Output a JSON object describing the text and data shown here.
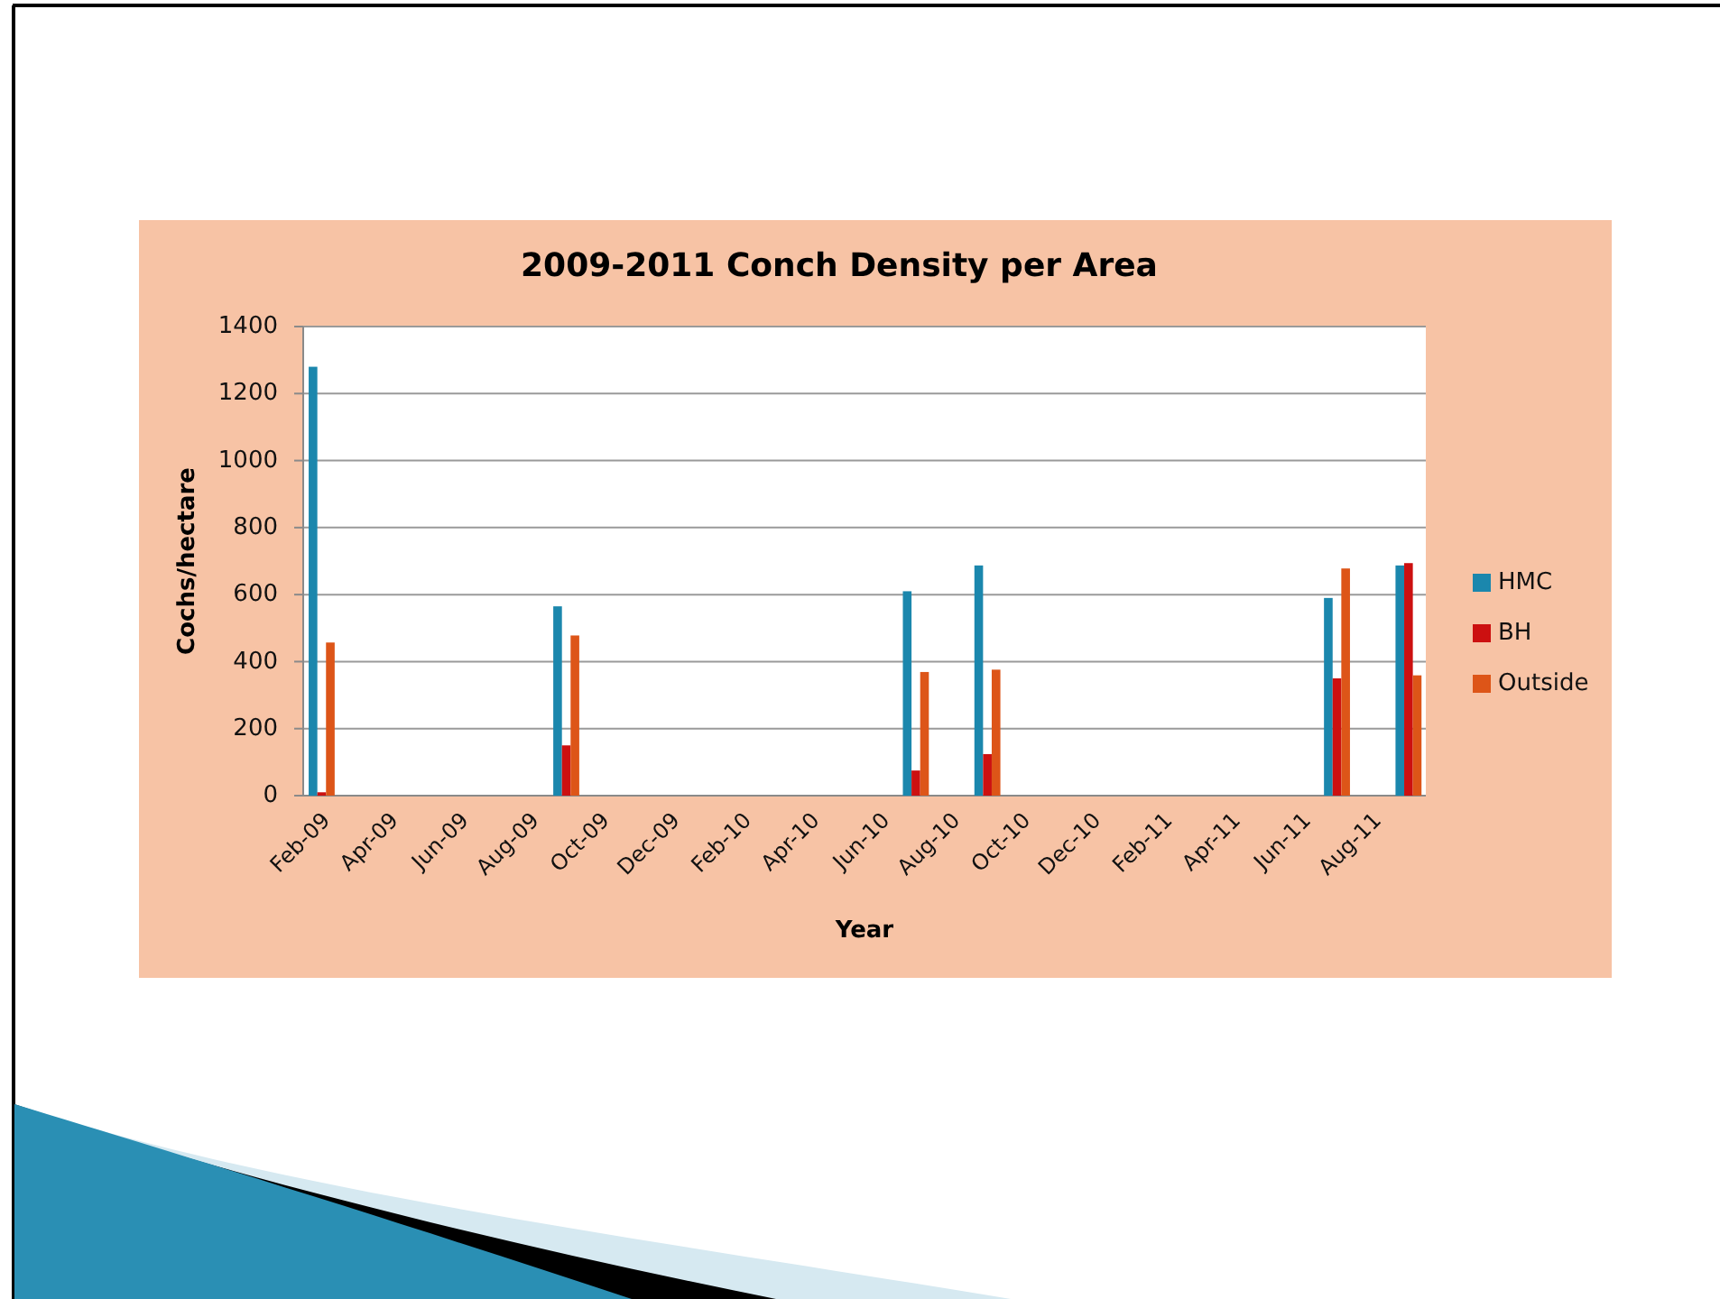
{
  "chart_data": {
    "type": "bar",
    "title": "2009-2011 Conch Density per Area",
    "xlabel": "Year",
    "ylabel": "Cochs/hectare",
    "x": [
      "2009-02",
      "2009-09",
      "2010-07",
      "2010-09",
      "2011-07",
      "2011-09"
    ],
    "series": [
      {
        "name": "HMC",
        "color": "#1b87ad",
        "values": [
          1280,
          565,
          610,
          687,
          590,
          687
        ]
      },
      {
        "name": "BH",
        "color": "#cc1010",
        "values": [
          10,
          150,
          75,
          124,
          350,
          694
        ]
      },
      {
        "name": "Outside",
        "color": "#dd5518",
        "values": [
          457,
          478,
          369,
          376,
          678,
          359
        ]
      }
    ],
    "xlim": [
      "2009-01-16",
      "2011-09-16"
    ],
    "xticks": [
      {
        "value": "2009-02",
        "label": "Feb-09"
      },
      {
        "value": "2009-04",
        "label": "Apr-09"
      },
      {
        "value": "2009-06",
        "label": "Jun-09"
      },
      {
        "value": "2009-08",
        "label": "Aug-09"
      },
      {
        "value": "2009-10",
        "label": "Oct-09"
      },
      {
        "value": "2009-12",
        "label": "Dec-09"
      },
      {
        "value": "2010-02",
        "label": "Feb-10"
      },
      {
        "value": "2010-04",
        "label": "Apr-10"
      },
      {
        "value": "2010-06",
        "label": "Jun-10"
      },
      {
        "value": "2010-08",
        "label": "Aug-10"
      },
      {
        "value": "2010-10",
        "label": "Oct-10"
      },
      {
        "value": "2010-12",
        "label": "Dec-10"
      },
      {
        "value": "2011-02",
        "label": "Feb-11"
      },
      {
        "value": "2011-04",
        "label": "Apr-11"
      },
      {
        "value": "2011-06",
        "label": "Jun-11"
      },
      {
        "value": "2011-08",
        "label": "Aug-11"
      }
    ],
    "ylim": [
      0,
      1400
    ],
    "yticks": [
      0,
      200,
      400,
      600,
      800,
      1000,
      1200,
      1400
    ],
    "grid": "y",
    "legend": "right"
  }
}
